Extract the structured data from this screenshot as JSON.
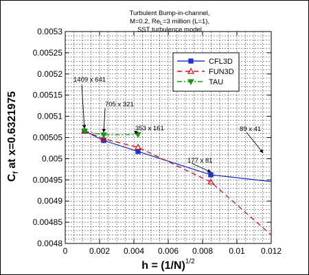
{
  "chart_data": {
    "type": "line",
    "title": [
      "Turbulent Bump-in-channel,",
      "M=0.2, Re",
      "=3 million (L=1),",
      "SST turbulence model"
    ],
    "title_subscript": "L",
    "xlabel": "h = (1/N)",
    "xlabel_superscript": "1/2",
    "ylabel": "C",
    "ylabel_subscript": "f",
    "ylabel_suffix": " at x=0.6321975",
    "xlim": [
      0,
      0.012
    ],
    "ylim": [
      0.0048,
      0.0053
    ],
    "x_ticks": [
      0,
      0.002,
      0.004,
      0.006,
      0.008,
      0.01,
      0.012
    ],
    "x_tick_labels": [
      "0",
      "0.002",
      "0.004",
      "0.006",
      "0.008",
      "0.01",
      "0.012"
    ],
    "y_ticks": [
      0.0048,
      0.00485,
      0.0049,
      0.00495,
      0.005,
      0.00505,
      0.0051,
      0.00515,
      0.0052,
      0.00525,
      0.0053
    ],
    "y_tick_labels": [
      "0.0048",
      "0.00485",
      "0.0049",
      "0.00495",
      "0.005",
      "0.00505",
      "0.0051",
      "0.00515",
      "0.0052",
      "0.00525",
      "0.0053"
    ],
    "grid": true,
    "legend_position": "top-right",
    "series": [
      {
        "name": "CFL3D",
        "color": "#2233cc",
        "dash": "",
        "marker": "square",
        "x": [
          0.00112,
          0.00224,
          0.00424,
          0.00848,
          0.012
        ],
        "y": [
          0.005065,
          0.005043,
          0.005017,
          0.004962,
          0.004946
        ]
      },
      {
        "name": "FUN3D",
        "color": "#cc1111",
        "dash": "7,5",
        "marker": "triangle-up",
        "x": [
          0.00112,
          0.00224,
          0.00424,
          0.00848,
          0.012
        ],
        "y": [
          0.005065,
          0.005047,
          0.005027,
          0.004945,
          0.00482
        ]
      },
      {
        "name": "TAU",
        "color": "#119911",
        "dash": "7,3,2,3",
        "marker": "triangle-down",
        "x": [
          0.00112,
          0.00224,
          0.00424
        ],
        "y": [
          0.005065,
          0.005056,
          0.005057
        ]
      }
    ],
    "annotations": [
      {
        "text": "1409 x 641",
        "x": 0.00112,
        "y": 0.005065
      },
      {
        "text": "705 x 321",
        "x": 0.00224,
        "y": 0.005056
      },
      {
        "text": "353 x 161",
        "x": 0.00424,
        "y": 0.005057
      },
      {
        "text": "177 x 81",
        "x": 0.00848,
        "y": 0.004962
      },
      {
        "text": "89 x 41",
        "x": 0.012,
        "y": 0.004946
      }
    ]
  }
}
